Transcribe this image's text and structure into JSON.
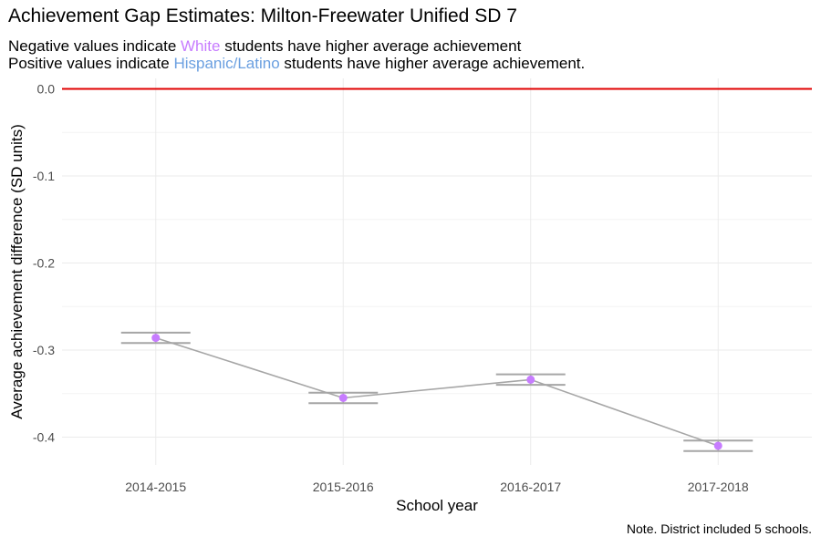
{
  "title": "Achievement Gap Estimates: Milton-Freewater Unified SD 7",
  "subtitle": {
    "line1": {
      "before": "Negative values indicate ",
      "highlight": "White",
      "after": " students have higher average achievement"
    },
    "line2": {
      "before": "Positive values indicate ",
      "highlight": "Hispanic/Latino",
      "after": " students have higher average achievement."
    }
  },
  "note": "Note. District included 5 schools.",
  "colors": {
    "white_group": "#c77cff",
    "hispanic_group": "#6a9fe0",
    "reference_line": "#e00000",
    "series_line": "#a6a6a6",
    "error_bar": "#a6a6a6",
    "point": "#c77cff",
    "grid": "#ebebeb"
  },
  "chart_data": {
    "type": "line",
    "title": "Achievement Gap Estimates: Milton-Freewater Unified SD 7",
    "xlabel": "School year",
    "ylabel": "Average achievement difference (SD units)",
    "categories": [
      "2014-2015",
      "2015-2016",
      "2016-2017",
      "2017-2018"
    ],
    "values": [
      -0.286,
      -0.355,
      -0.334,
      -0.41
    ],
    "error_low": [
      -0.292,
      -0.361,
      -0.34,
      -0.416
    ],
    "error_high": [
      -0.28,
      -0.349,
      -0.328,
      -0.404
    ],
    "reference_line": 0.0,
    "y_ticks": [
      0.0,
      -0.1,
      -0.2,
      -0.3,
      -0.4
    ],
    "y_tick_labels": [
      "0.0",
      "-0.1",
      "-0.2",
      "-0.3",
      "-0.4"
    ],
    "ylim": [
      -0.432,
      0.012
    ],
    "grid": true,
    "legend": "none"
  }
}
